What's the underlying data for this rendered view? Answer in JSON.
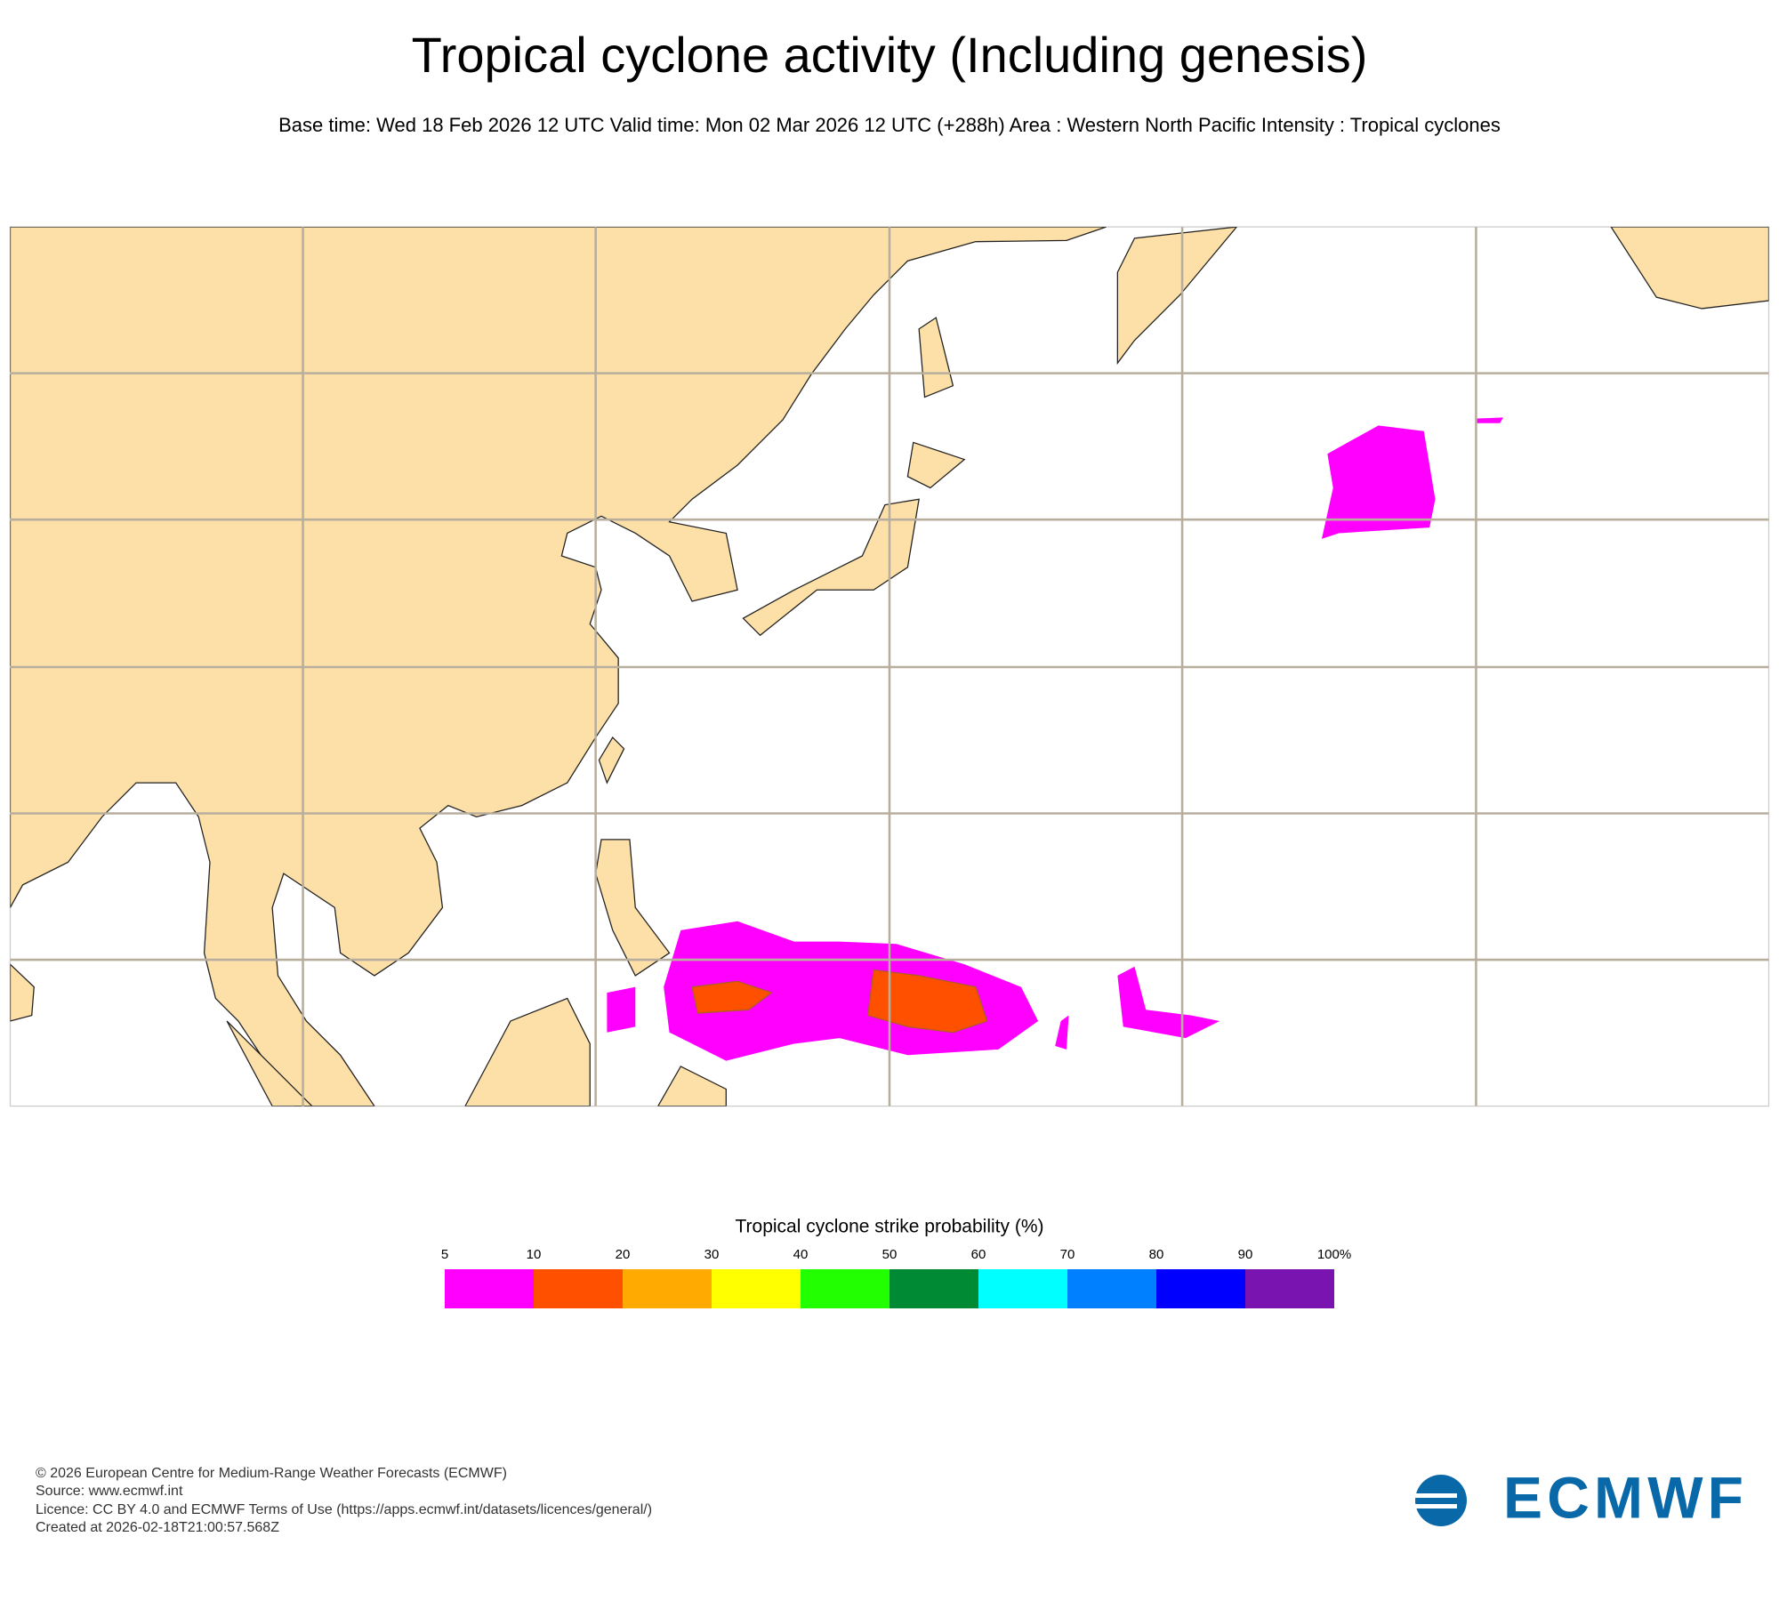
{
  "header": {
    "title": "Tropical cyclone activity (Including genesis)",
    "subtitle": "Base time: Wed 18 Feb 2026 12 UTC Valid time: Mon 02 Mar 2026 12 UTC (+288h) Area : Western North Pacific Intensity : Tropical cyclones"
  },
  "legend": {
    "title": "Tropical cyclone strike probability (%)",
    "ticks": [
      5,
      10,
      20,
      30,
      40,
      50,
      60,
      70,
      80,
      90,
      {
        "value": 100,
        "label": "100%"
      }
    ],
    "colors": [
      "#ff00ff",
      "#ff5000",
      "#ffaa00",
      "#ffff00",
      "#22ff00",
      "#008a33",
      "#00ffff",
      "#0080ff",
      "#0000ff",
      "#7a14b0"
    ]
  },
  "footer": {
    "lines": [
      "© 2026 European Centre for Medium-Range Weather Forecasts (ECMWF)",
      "Source: www.ecmwf.int",
      "Licence: CC BY 4.0 and ECMWF Terms of Use (https://apps.ecmwf.int/datasets/licences/general/)",
      "Created at 2026-02-18T21:00:57.568Z"
    ],
    "logo": "ECMWF"
  }
}
